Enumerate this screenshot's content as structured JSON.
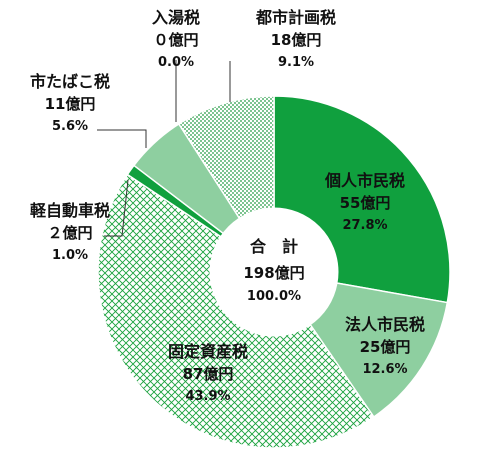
{
  "chart_data": {
    "type": "pie",
    "style": "donut",
    "center": {
      "line1": "合　計",
      "line2": "198億円",
      "line3": "100.0%"
    },
    "colors": {
      "green": "#10a03e",
      "light_green": "#8ecfa0",
      "white_outline": "#ffffff",
      "dotted_fill": "#1f9a40",
      "crosshatch": "#19a13c",
      "line": "#333333"
    },
    "slices": [
      {
        "label": "個人市民税",
        "amount": "55億円",
        "value": 55,
        "percent": "27.8%",
        "style": "solid"
      },
      {
        "label": "法人市民税",
        "amount": "25億円",
        "value": 25,
        "percent": "12.6%",
        "style": "light"
      },
      {
        "label": "固定資産税",
        "amount": "87億円",
        "value": 87,
        "percent": "43.9%",
        "style": "crosshatch"
      },
      {
        "label": "軽自動車税",
        "amount": "２億円",
        "value": 2,
        "percent": "1.0%",
        "style": "solid"
      },
      {
        "label": "市たばこ税",
        "amount": "11億円",
        "value": 11,
        "percent": "5.6%",
        "style": "light"
      },
      {
        "label": "入湯税",
        "amount": "０億円",
        "value": 0,
        "percent": "0.0%",
        "style": "none"
      },
      {
        "label": "都市計画税",
        "amount": "18億円",
        "value": 18,
        "percent": "9.1%",
        "style": "dotted"
      }
    ]
  }
}
